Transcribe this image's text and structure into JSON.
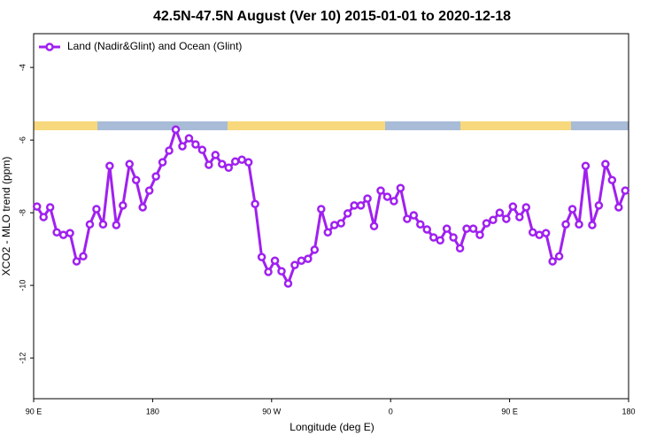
{
  "chart_data": {
    "type": "line",
    "title": "42.5N-47.5N August (Ver 10)   2015-01-01 to 2020-12-18",
    "xlabel": "Longitude (deg E)",
    "ylabel": "XCO2 - MLO trend (ppm)",
    "xlim": [
      90,
      540
    ],
    "xticks": [
      {
        "value": 90,
        "label": "90 E"
      },
      {
        "value": 180,
        "label": "180"
      },
      {
        "value": 270,
        "label": "90 W"
      },
      {
        "value": 360,
        "label": "0"
      },
      {
        "value": 450,
        "label": "90 E"
      },
      {
        "value": 540,
        "label": "180"
      }
    ],
    "ylim": [
      -13.12,
      -3.07
    ],
    "yticks": [
      -4,
      -6,
      -8,
      -10,
      -12
    ],
    "legend": "top-left",
    "x": [
      92.5,
      97.5,
      102.5,
      107.5,
      112.5,
      117.5,
      122.5,
      127.5,
      132.5,
      137.5,
      142.5,
      147.5,
      152.5,
      157.5,
      162.5,
      167.5,
      172.5,
      177.5,
      182.5,
      187.5,
      192.5,
      197.5,
      202.5,
      207.5,
      212.5,
      217.5,
      222.5,
      227.5,
      232.5,
      237.5,
      242.5,
      247.5,
      252.5,
      257.5,
      262.5,
      267.5,
      272.5,
      277.5,
      282.5,
      287.5,
      292.5,
      297.5,
      302.5,
      307.5,
      312.5,
      317.5,
      322.5,
      327.5,
      332.5,
      337.5,
      342.5,
      347.5,
      352.5,
      357.5,
      362.5,
      367.5,
      372.5,
      377.5,
      382.5,
      387.5,
      392.5,
      397.5,
      402.5,
      407.5,
      412.5,
      417.5,
      422.5,
      427.5,
      432.5,
      437.5,
      442.5,
      447.5,
      452.5,
      457.5,
      462.5,
      467.5,
      472.5,
      477.5,
      482.5,
      487.5,
      492.5,
      497.5,
      502.5,
      507.5,
      512.5,
      517.5,
      522.5,
      527.5,
      532.5,
      537.5
    ],
    "series": [
      {
        "name": "Land (Nadir&Glint) and Ocean (Glint)",
        "color": "#a020f0",
        "values": [
          -7.83,
          -8.12,
          -7.85,
          -8.54,
          -8.61,
          -8.56,
          -9.34,
          -9.2,
          -8.32,
          -7.9,
          -8.32,
          -6.71,
          -8.34,
          -7.8,
          -6.66,
          -7.1,
          -7.85,
          -7.39,
          -7.0,
          -6.61,
          -6.29,
          -5.71,
          -6.17,
          -5.95,
          -6.12,
          -6.27,
          -6.68,
          -6.41,
          -6.66,
          -6.76,
          -6.59,
          -6.54,
          -6.61,
          -7.76,
          -9.22,
          -9.63,
          -9.32,
          -9.61,
          -9.95,
          -9.44,
          -9.32,
          -9.27,
          -9.02,
          -7.9,
          -8.54,
          -8.34,
          -8.29,
          -8.02,
          -7.8,
          -7.8,
          -7.61,
          -8.37,
          -7.39,
          -7.56,
          -7.68,
          -7.32,
          -8.17,
          -8.07,
          -8.32,
          -8.46,
          -8.68,
          -8.76,
          -8.44,
          -8.68,
          -8.98,
          -8.44,
          -8.44,
          -8.61,
          -8.29,
          -8.2,
          -8.0,
          -8.17,
          -7.83,
          -8.12,
          -7.85,
          -8.54,
          -8.61,
          -8.56,
          -9.34,
          -9.2,
          -8.32,
          -7.9,
          -8.32,
          -6.71,
          -8.34,
          -7.8,
          -6.66,
          -7.1,
          -7.85,
          -7.39
        ]
      }
    ]
  }
}
